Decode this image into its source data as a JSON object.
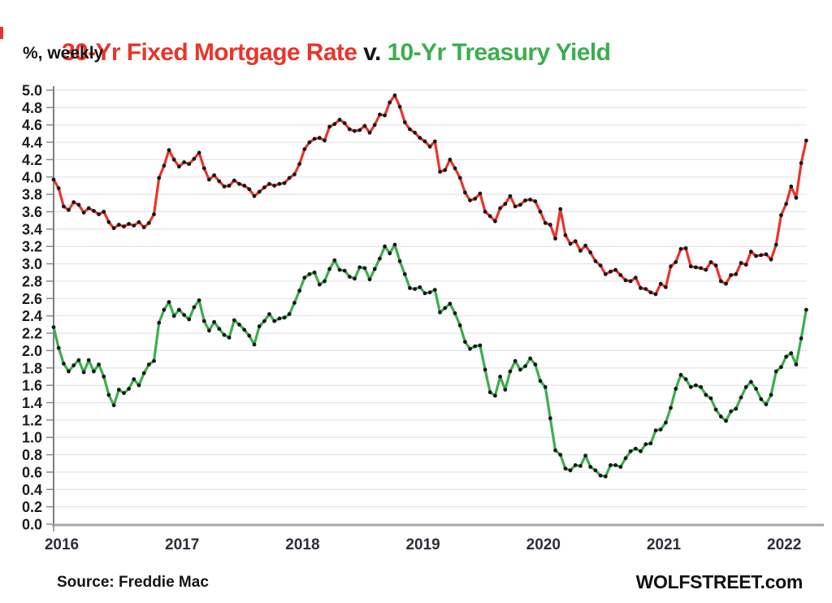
{
  "header": {
    "title_red": "30-Yr Fixed Mortgage Rate",
    "title_sep": " v. ",
    "title_green": "10-Yr Treasury Yield",
    "subtitle": "%, weekly"
  },
  "footer": {
    "source": "Source: Freddie Mac",
    "brand": "WOLFSTREET.com"
  },
  "colors": {
    "mortgage_red": "#e8352b",
    "treasury_green": "#3cae4d",
    "title_sep": "#15151f",
    "marker_black": "#161616",
    "gridline": "#e4e4ea",
    "y_axis_line": "#7f7f7f",
    "x_axis_line": "#a6a6a6",
    "tick": "#8a8a8a",
    "y_label": "#1c1c1c",
    "x_label": "#2e2e3a"
  },
  "chart_data": {
    "type": "line",
    "title": "30-Yr Fixed Mortgage Rate v. 10-Yr Treasury Yield",
    "subtitle_units": "%, weekly",
    "frequency": "weekly",
    "x_start": 2016.0,
    "x_step": 0.0416667,
    "xlim": [
      2016.0,
      2022.3
    ],
    "ylim": [
      0.0,
      5.0
    ],
    "y_tick_step": 0.2,
    "y_tick_labels": [
      "0.0",
      "0.2",
      "0.4",
      "0.6",
      "0.8",
      "1.0",
      "1.2",
      "1.4",
      "1.6",
      "1.8",
      "2.0",
      "2.2",
      "2.4",
      "2.6",
      "2.8",
      "3.0",
      "3.2",
      "3.4",
      "3.6",
      "3.8",
      "4.0",
      "4.2",
      "4.4",
      "4.6",
      "4.8",
      "5.0"
    ],
    "x_tick_years": [
      "2016",
      "2017",
      "2018",
      "2019",
      "2020",
      "2021",
      "2022"
    ],
    "grid": "horizontal",
    "legend": "in-title",
    "series": [
      {
        "id": "mortgage-30yr",
        "name": "30-Yr Fixed Mortgage Rate",
        "color_key": "mortgage_red",
        "values": [
          3.97,
          3.87,
          3.66,
          3.62,
          3.71,
          3.68,
          3.59,
          3.64,
          3.61,
          3.57,
          3.6,
          3.48,
          3.41,
          3.45,
          3.43,
          3.46,
          3.44,
          3.48,
          3.42,
          3.47,
          3.57,
          3.99,
          4.13,
          4.31,
          4.2,
          4.12,
          4.17,
          4.15,
          4.21,
          4.28,
          4.1,
          3.97,
          4.02,
          3.95,
          3.89,
          3.9,
          3.96,
          3.92,
          3.9,
          3.86,
          3.78,
          3.83,
          3.88,
          3.92,
          3.9,
          3.92,
          3.93,
          3.99,
          4.03,
          4.15,
          4.32,
          4.4,
          4.44,
          4.45,
          4.42,
          4.58,
          4.61,
          4.66,
          4.62,
          4.55,
          4.53,
          4.54,
          4.59,
          4.51,
          4.6,
          4.72,
          4.71,
          4.86,
          4.94,
          4.81,
          4.63,
          4.55,
          4.51,
          4.45,
          4.41,
          4.35,
          4.41,
          4.06,
          4.08,
          4.2,
          4.1,
          3.99,
          3.82,
          3.73,
          3.75,
          3.81,
          3.6,
          3.55,
          3.49,
          3.64,
          3.69,
          3.78,
          3.66,
          3.68,
          3.73,
          3.74,
          3.72,
          3.6,
          3.47,
          3.45,
          3.29,
          3.63,
          3.33,
          3.23,
          3.26,
          3.15,
          3.21,
          3.13,
          3.03,
          2.98,
          2.88,
          2.91,
          2.93,
          2.87,
          2.81,
          2.8,
          2.84,
          2.72,
          2.71,
          2.67,
          2.65,
          2.77,
          2.73,
          2.97,
          3.02,
          3.17,
          3.18,
          2.97,
          2.96,
          2.95,
          2.93,
          3.02,
          2.98,
          2.8,
          2.77,
          2.87,
          2.88,
          3.01,
          2.99,
          3.14,
          3.09,
          3.1,
          3.11,
          3.05,
          3.22,
          3.56,
          3.69,
          3.89,
          3.76,
          4.16,
          4.42
        ]
      },
      {
        "id": "treasury-10yr",
        "name": "10-Yr Treasury Yield",
        "color_key": "treasury_green",
        "values": [
          2.27,
          2.03,
          1.85,
          1.76,
          1.83,
          1.89,
          1.75,
          1.89,
          1.76,
          1.84,
          1.7,
          1.49,
          1.37,
          1.55,
          1.51,
          1.56,
          1.67,
          1.6,
          1.74,
          1.84,
          1.88,
          2.32,
          2.47,
          2.56,
          2.4,
          2.47,
          2.41,
          2.36,
          2.5,
          2.58,
          2.34,
          2.23,
          2.33,
          2.25,
          2.18,
          2.15,
          2.35,
          2.3,
          2.24,
          2.17,
          2.07,
          2.28,
          2.34,
          2.42,
          2.34,
          2.37,
          2.38,
          2.42,
          2.55,
          2.69,
          2.84,
          2.88,
          2.9,
          2.76,
          2.8,
          2.94,
          3.04,
          2.93,
          2.92,
          2.85,
          2.83,
          2.96,
          2.95,
          2.82,
          2.94,
          3.06,
          3.2,
          3.12,
          3.22,
          3.03,
          2.88,
          2.72,
          2.71,
          2.73,
          2.66,
          2.67,
          2.7,
          2.44,
          2.49,
          2.54,
          2.43,
          2.29,
          2.1,
          2.02,
          2.05,
          2.06,
          1.78,
          1.52,
          1.48,
          1.7,
          1.55,
          1.76,
          1.88,
          1.78,
          1.82,
          1.91,
          1.84,
          1.65,
          1.58,
          1.22,
          0.85,
          0.8,
          0.64,
          0.62,
          0.68,
          0.67,
          0.79,
          0.66,
          0.62,
          0.56,
          0.55,
          0.68,
          0.68,
          0.66,
          0.76,
          0.84,
          0.87,
          0.84,
          0.92,
          0.93,
          1.08,
          1.09,
          1.17,
          1.34,
          1.56,
          1.72,
          1.67,
          1.58,
          1.6,
          1.58,
          1.49,
          1.45,
          1.32,
          1.24,
          1.19,
          1.3,
          1.33,
          1.46,
          1.58,
          1.64,
          1.56,
          1.44,
          1.38,
          1.49,
          1.76,
          1.81,
          1.93,
          1.97,
          1.84,
          2.14,
          2.47
        ]
      }
    ]
  }
}
